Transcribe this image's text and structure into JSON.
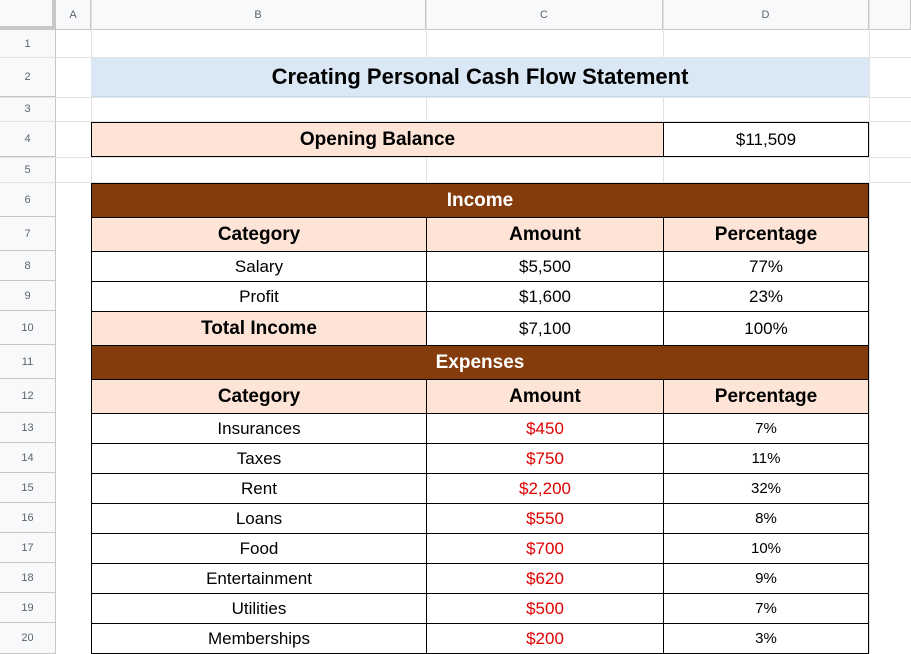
{
  "columns": [
    "A",
    "B",
    "C",
    "D"
  ],
  "rows": [
    "1",
    "2",
    "3",
    "4",
    "5",
    "6",
    "7",
    "8",
    "9",
    "10",
    "11",
    "12",
    "13",
    "14",
    "15",
    "16",
    "17",
    "18",
    "19",
    "20"
  ],
  "title": "Creating Personal Cash Flow Statement",
  "opening_balance": {
    "label": "Opening Balance",
    "value": "$11,509"
  },
  "income": {
    "section_title": "Income",
    "headers": [
      "Category",
      "Amount",
      "Percentage"
    ],
    "rows": [
      {
        "category": "Salary",
        "amount": "$5,500",
        "percentage": "77%"
      },
      {
        "category": "Profit",
        "amount": "$1,600",
        "percentage": "23%"
      }
    ],
    "total": {
      "label": "Total Income",
      "amount": "$7,100",
      "percentage": "100%"
    }
  },
  "expenses": {
    "section_title": "Expenses",
    "headers": [
      "Category",
      "Amount",
      "Percentage"
    ],
    "rows": [
      {
        "category": "Insurances",
        "amount": "$450",
        "percentage": "7%"
      },
      {
        "category": "Taxes",
        "amount": "$750",
        "percentage": "11%"
      },
      {
        "category": "Rent",
        "amount": "$2,200",
        "percentage": "32%"
      },
      {
        "category": "Loans",
        "amount": "$550",
        "percentage": "8%"
      },
      {
        "category": "Food",
        "amount": "$700",
        "percentage": "10%"
      },
      {
        "category": "Entertainment",
        "amount": "$620",
        "percentage": "9%"
      },
      {
        "category": "Utilities",
        "amount": "$500",
        "percentage": "7%"
      },
      {
        "category": "Memberships",
        "amount": "$200",
        "percentage": "3%"
      }
    ]
  },
  "colors": {
    "title_fill": "#dae8f5",
    "peach_fill": "#fde4d6",
    "section_fill": "#843c0c",
    "expense_amount": "#e00000"
  }
}
